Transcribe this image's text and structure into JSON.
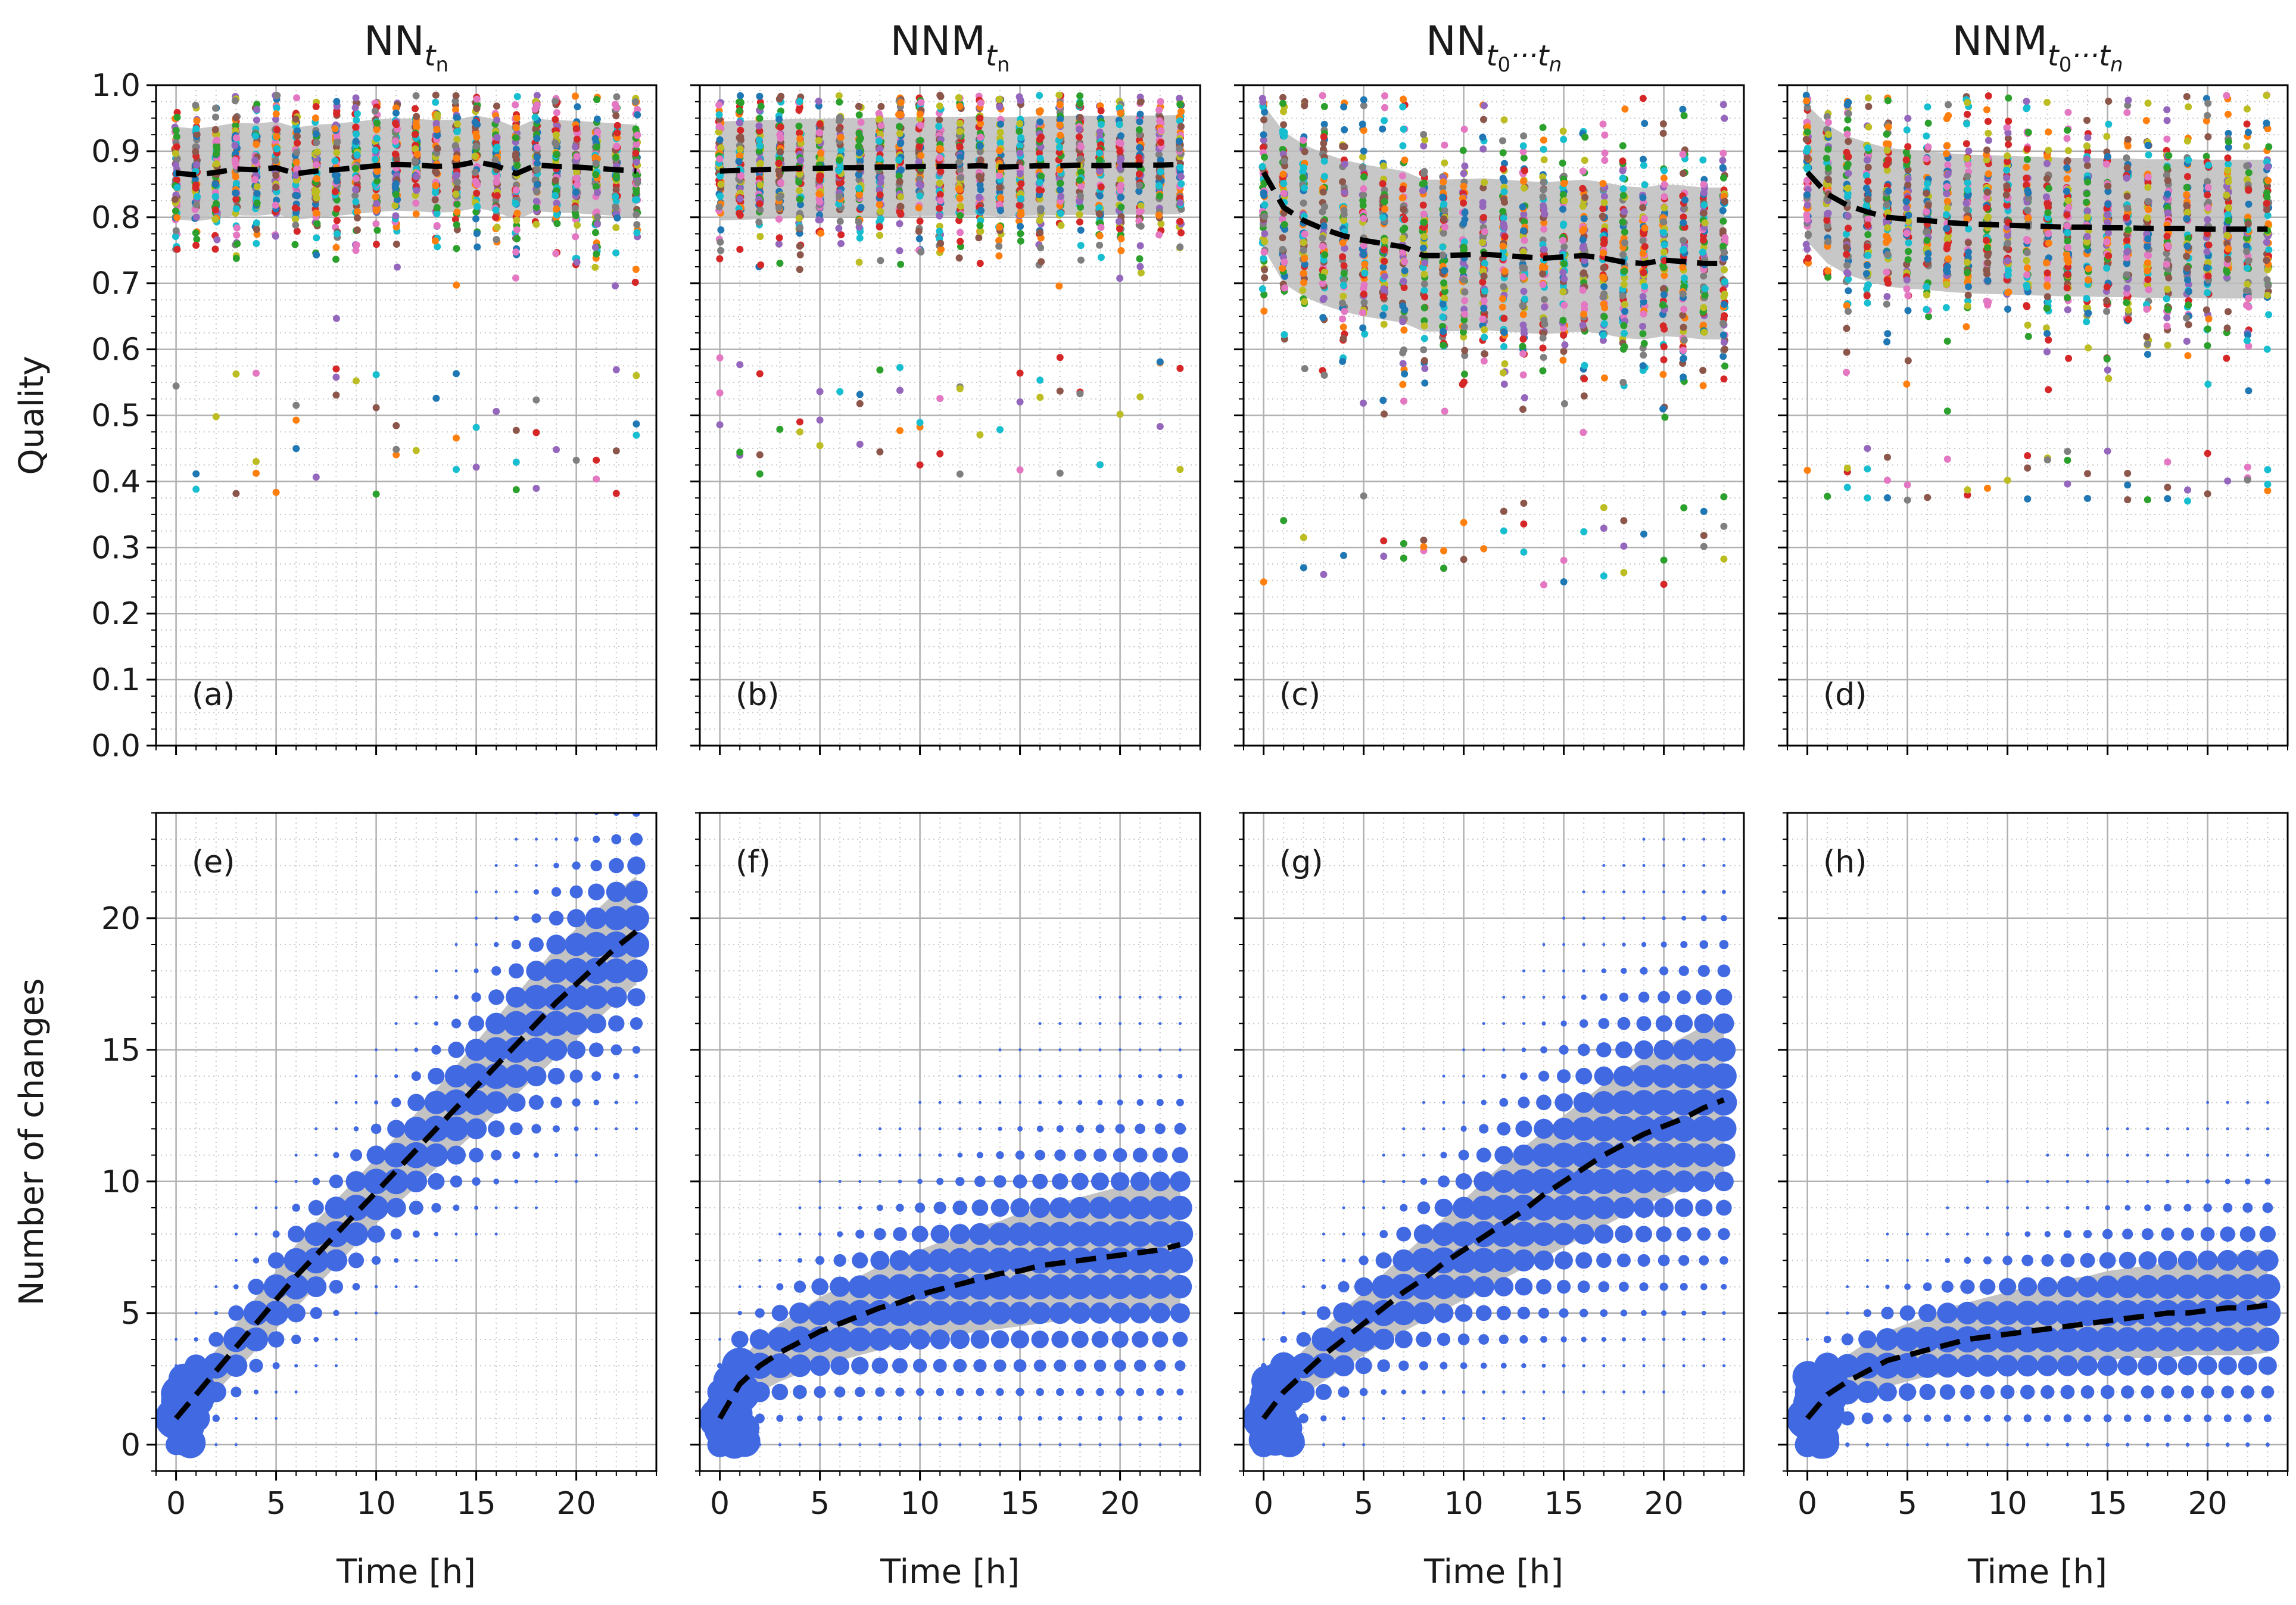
{
  "chart_data": {
    "type": "scatter",
    "layout": "2 rows x 4 columns, shared x axis per column",
    "colors": {
      "mean_line": "#000000",
      "std_band": "#bdbdbd",
      "changes_points": "#4169e1",
      "quality_points_palette": [
        "#1f77b4",
        "#ff7f0e",
        "#2ca02c",
        "#d62728",
        "#9467bd",
        "#8c564b",
        "#e377c2",
        "#7f7f7f",
        "#bcbd22",
        "#17becf"
      ]
    },
    "x_axis": {
      "label": "Time [h]",
      "range": [
        -1,
        24
      ],
      "ticks": [
        0,
        5,
        10,
        15,
        20
      ],
      "tick_labels": [
        "0",
        "5",
        "10",
        "15",
        "20"
      ],
      "grid": "major solid, minor dotted"
    },
    "top_row": {
      "ylabel": "Quality",
      "ylim": [
        0,
        1
      ],
      "yticks": [
        0.0,
        0.1,
        0.2,
        0.3,
        0.4,
        0.5,
        0.6,
        0.7,
        0.8,
        0.9,
        1.0
      ],
      "ytick_labels": [
        "0.0",
        "0.1",
        "0.2",
        "0.3",
        "0.4",
        "0.5",
        "0.6",
        "0.7",
        "0.8",
        "0.9",
        "1.0"
      ],
      "panels": [
        {
          "title_base": "NN",
          "title_sub": "t",
          "title_subsub": "n",
          "label": "(a)",
          "mean": [
            0.867,
            0.864,
            0.868,
            0.873,
            0.872,
            0.875,
            0.866,
            0.87,
            0.872,
            0.875,
            0.878,
            0.88,
            0.879,
            0.877,
            0.878,
            0.884,
            0.878,
            0.866,
            0.879,
            0.877,
            0.876,
            0.874,
            0.872,
            0.87
          ],
          "band_half_width": 0.07,
          "spread_lo": 0.58,
          "outlier_low": 0.38
        },
        {
          "title_base": "NNM",
          "title_sub": "t",
          "title_subsub": "n",
          "label": "(b)",
          "mean": [
            0.87,
            0.871,
            0.872,
            0.873,
            0.874,
            0.874,
            0.875,
            0.875,
            0.876,
            0.876,
            0.877,
            0.877,
            0.877,
            0.878,
            0.876,
            0.877,
            0.878,
            0.878,
            0.879,
            0.878,
            0.879,
            0.879,
            0.879,
            0.88
          ],
          "band_half_width": 0.075,
          "spread_lo": 0.6,
          "outlier_low": 0.41
        },
        {
          "title_base": "NN",
          "title_sub": "t",
          "title_subsub": "0",
          "title_mid": "···t",
          "title_end": "n",
          "label": "(c)",
          "mean": [
            0.868,
            0.815,
            0.795,
            0.782,
            0.772,
            0.765,
            0.76,
            0.755,
            0.742,
            0.742,
            0.743,
            0.744,
            0.742,
            0.74,
            0.738,
            0.74,
            0.742,
            0.738,
            0.732,
            0.73,
            0.735,
            0.733,
            0.73,
            0.73
          ],
          "band_half_width": 0.115,
          "spread_lo": 0.38,
          "outlier_low": 0.24
        },
        {
          "title_base": "NNM",
          "title_sub": "t",
          "title_subsub": "0",
          "title_mid": "···t",
          "title_end": "n",
          "label": "(d)",
          "mean": [
            0.868,
            0.835,
            0.818,
            0.808,
            0.8,
            0.797,
            0.795,
            0.792,
            0.79,
            0.789,
            0.788,
            0.787,
            0.786,
            0.785,
            0.785,
            0.784,
            0.784,
            0.783,
            0.783,
            0.783,
            0.782,
            0.782,
            0.782,
            0.782
          ],
          "band_half_width": 0.105,
          "spread_lo": 0.45,
          "outlier_low": 0.37
        }
      ]
    },
    "bottom_row": {
      "ylabel": "Number of changes",
      "ylim": [
        -1,
        24
      ],
      "yticks": [
        0,
        5,
        10,
        15,
        20
      ],
      "ytick_labels": [
        "0",
        "5",
        "10",
        "15",
        "20"
      ],
      "panels": [
        {
          "label": "(e)",
          "mean": [
            1.0,
            1.9,
            2.8,
            3.7,
            4.6,
            5.5,
            6.4,
            7.2,
            8.0,
            8.8,
            9.6,
            10.4,
            11.2,
            12.0,
            12.8,
            13.6,
            14.4,
            15.2,
            16.0,
            16.8,
            17.5,
            18.2,
            18.9,
            19.5
          ],
          "band_lo": [
            0.4,
            1.2,
            2.0,
            2.8,
            3.6,
            4.4,
            5.2,
            6.0,
            6.8,
            7.6,
            8.4,
            9.1,
            9.8,
            10.5,
            11.2,
            11.9,
            12.6,
            13.3,
            14.0,
            14.7,
            15.4,
            16.1,
            16.8,
            17.5
          ],
          "band_hi": [
            1.6,
            2.6,
            3.6,
            4.6,
            5.6,
            6.6,
            7.6,
            8.5,
            9.3,
            10.1,
            10.9,
            11.7,
            12.6,
            13.5,
            14.4,
            15.3,
            16.2,
            17.1,
            18.0,
            18.9,
            19.6,
            20.3,
            21.0,
            21.6
          ]
        },
        {
          "label": "(f)",
          "mean": [
            1.0,
            2.3,
            3.0,
            3.5,
            3.9,
            4.3,
            4.6,
            4.9,
            5.2,
            5.4,
            5.7,
            5.9,
            6.1,
            6.3,
            6.5,
            6.6,
            6.8,
            6.9,
            7.0,
            7.1,
            7.2,
            7.3,
            7.4,
            7.6
          ],
          "band_lo": [
            0.3,
            1.4,
            2.0,
            2.4,
            2.7,
            3.0,
            3.2,
            3.4,
            3.6,
            3.8,
            4.0,
            4.1,
            4.2,
            4.3,
            4.4,
            4.5,
            4.6,
            4.7,
            4.8,
            4.9,
            5.0,
            5.0,
            5.1,
            5.2
          ],
          "band_hi": [
            1.7,
            3.2,
            4.0,
            4.6,
            5.1,
            5.6,
            6.0,
            6.4,
            6.8,
            7.1,
            7.4,
            7.7,
            8.0,
            8.3,
            8.5,
            8.8,
            9.0,
            9.2,
            9.4,
            9.6,
            9.8,
            9.9,
            10.0,
            10.1
          ]
        },
        {
          "label": "(g)",
          "mean": [
            1.0,
            2.0,
            2.7,
            3.4,
            4.0,
            4.6,
            5.2,
            5.8,
            6.3,
            6.9,
            7.4,
            7.9,
            8.4,
            8.9,
            9.5,
            10.0,
            10.5,
            11.0,
            11.4,
            11.8,
            12.1,
            12.4,
            12.8,
            13.1
          ],
          "band_lo": [
            0.3,
            1.3,
            1.9,
            2.4,
            2.9,
            3.4,
            3.9,
            4.3,
            4.7,
            5.1,
            5.5,
            5.9,
            6.3,
            6.7,
            7.1,
            7.5,
            7.9,
            8.3,
            8.7,
            9.1,
            9.4,
            9.7,
            10.0,
            10.3
          ],
          "band_hi": [
            1.7,
            2.8,
            3.6,
            4.4,
            5.1,
            5.8,
            6.5,
            7.2,
            7.9,
            8.6,
            9.3,
            10.0,
            10.7,
            11.3,
            11.9,
            12.5,
            13.1,
            13.7,
            14.2,
            14.7,
            15.1,
            15.5,
            15.9,
            16.1
          ]
        },
        {
          "label": "(h)",
          "mean": [
            1.0,
            1.9,
            2.4,
            2.8,
            3.2,
            3.4,
            3.6,
            3.8,
            4.0,
            4.1,
            4.2,
            4.3,
            4.4,
            4.5,
            4.6,
            4.7,
            4.8,
            4.9,
            5.0,
            5.0,
            5.1,
            5.2,
            5.2,
            5.3
          ],
          "band_lo": [
            0.3,
            1.2,
            1.6,
            1.9,
            2.2,
            2.4,
            2.6,
            2.7,
            2.8,
            2.9,
            3.0,
            3.0,
            3.1,
            3.1,
            3.2,
            3.2,
            3.3,
            3.3,
            3.3,
            3.4,
            3.4,
            3.4,
            3.4,
            3.5
          ],
          "band_hi": [
            1.7,
            2.8,
            3.4,
            3.9,
            4.3,
            4.6,
            4.9,
            5.2,
            5.4,
            5.6,
            5.8,
            6.0,
            6.1,
            6.3,
            6.4,
            6.6,
            6.7,
            6.8,
            6.9,
            7.0,
            7.1,
            7.2,
            7.3,
            7.4
          ]
        }
      ]
    }
  }
}
